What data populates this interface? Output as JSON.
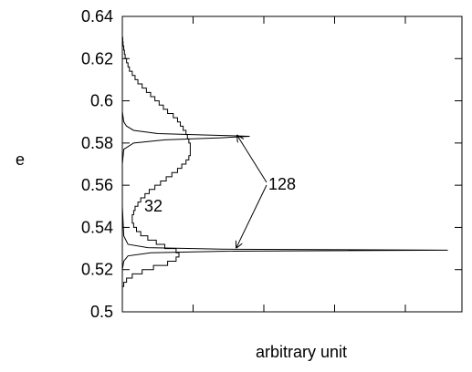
{
  "chart_data": {
    "type": "line",
    "title": "",
    "xlabel": "arbitrary unit",
    "ylabel": "e",
    "ylim": [
      0.5,
      0.64
    ],
    "yticks": [
      "0.64",
      "0.62",
      "0.6",
      "0.58",
      "0.56",
      "0.54",
      "0.52",
      "0.5"
    ],
    "grid": false,
    "legend": "none",
    "series": [
      {
        "name": "32",
        "style": "step",
        "e": [
          0.513,
          0.515,
          0.517,
          0.519,
          0.521,
          0.523,
          0.525,
          0.527,
          0.529,
          0.531,
          0.533,
          0.535,
          0.537,
          0.539,
          0.541,
          0.543,
          0.545,
          0.547,
          0.549,
          0.551,
          0.553,
          0.555,
          0.557,
          0.559,
          0.561,
          0.563,
          0.565,
          0.567,
          0.569,
          0.571,
          0.573,
          0.575,
          0.577,
          0.579,
          0.581,
          0.583,
          0.585,
          0.587,
          0.589,
          0.591,
          0.593,
          0.595,
          0.597,
          0.599,
          0.601,
          0.603,
          0.605,
          0.607,
          0.609,
          0.611,
          0.613,
          0.615,
          0.617,
          0.619,
          0.621,
          0.623,
          0.625,
          0.627,
          0.629,
          0.631
        ],
        "value": [
          0.01,
          0.03,
          0.07,
          0.14,
          0.22,
          0.32,
          0.38,
          0.4,
          0.38,
          0.3,
          0.24,
          0.18,
          0.13,
          0.1,
          0.08,
          0.07,
          0.07,
          0.08,
          0.09,
          0.11,
          0.13,
          0.16,
          0.19,
          0.23,
          0.27,
          0.31,
          0.35,
          0.39,
          0.42,
          0.45,
          0.47,
          0.48,
          0.48,
          0.48,
          0.47,
          0.46,
          0.45,
          0.43,
          0.41,
          0.39,
          0.36,
          0.32,
          0.29,
          0.26,
          0.23,
          0.2,
          0.17,
          0.14,
          0.11,
          0.09,
          0.07,
          0.05,
          0.04,
          0.03,
          0.02,
          0.015,
          0.01,
          0.005,
          0.003,
          0.0
        ]
      },
      {
        "name": "128",
        "style": "line",
        "e": [
          0.51,
          0.52,
          0.524,
          0.5265,
          0.528,
          0.5287,
          0.5292,
          0.5297,
          0.5304,
          0.532,
          0.536,
          0.55,
          0.57,
          0.577,
          0.58,
          0.5815,
          0.5825,
          0.5832,
          0.5838,
          0.5845,
          0.586,
          0.588,
          0.59,
          0.595,
          0.61
        ],
        "value": [
          0.0,
          0.0,
          0.01,
          0.04,
          0.2,
          0.7,
          2.3,
          0.7,
          0.18,
          0.04,
          0.01,
          0.0,
          0.0,
          0.01,
          0.08,
          0.3,
          0.7,
          0.9,
          0.6,
          0.25,
          0.08,
          0.03,
          0.01,
          0.0,
          0.0
        ]
      }
    ],
    "annotations": [
      {
        "text": "32"
      },
      {
        "text": "128"
      }
    ]
  }
}
